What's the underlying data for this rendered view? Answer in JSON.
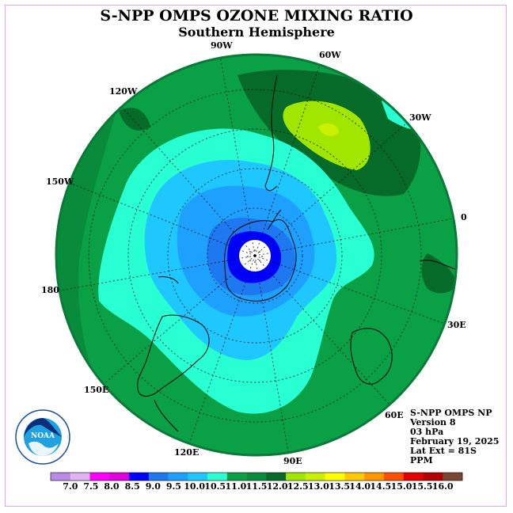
{
  "title": "S-NPP OMPS OZONE MIXING RATIO",
  "subtitle": "Southern Hemisphere",
  "info": {
    "instrument": "S-NPP OMPS NP",
    "version": "Version 8",
    "level": "03 hPa",
    "date": "February 19, 2025",
    "lat_ext": "Lat Ext = 81S",
    "units": "PPM"
  },
  "logo_text": "NOAA",
  "longitude_labels": [
    "90W",
    "60W",
    "120W",
    "30W",
    "150W",
    "0",
    "180",
    "30E",
    "150E",
    "60E",
    "120E",
    "90E"
  ],
  "colorbar": {
    "ticks": [
      "7.0",
      "7.5",
      "8.0",
      "8.5",
      "9.0",
      "9.5",
      "10.0",
      "10.5",
      "11.0",
      "11.5",
      "12.0",
      "12.5",
      "13.0",
      "13.5",
      "14.0",
      "14.5",
      "15.0",
      "15.5",
      "16.0"
    ],
    "colors": [
      "#b98ae8",
      "#e0b4f2",
      "#ff00ff",
      "#e000e0",
      "#0000ff",
      "#1e78f0",
      "#1ea0ff",
      "#1ec8ff",
      "#28ffd2",
      "#0aa046",
      "#088c3c",
      "#066a28",
      "#a0e600",
      "#c8f000",
      "#ffff00",
      "#ffc800",
      "#ff9600",
      "#ff5000",
      "#e60000",
      "#b40000",
      "#7a4632"
    ]
  }
}
